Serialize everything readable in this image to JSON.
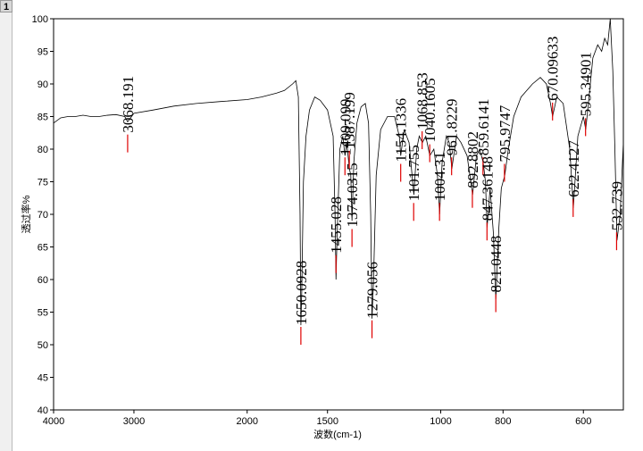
{
  "tab_label": "1",
  "chart_data": {
    "type": "line",
    "xlabel": "波数(cm-1)",
    "ylabel": "透过率%",
    "xscale": "log",
    "xlim": [
      4000,
      520
    ],
    "xticks": [
      4000,
      3000,
      2000,
      1500,
      1000,
      800,
      600
    ],
    "ylim": [
      40,
      100
    ],
    "yticks": [
      40,
      45,
      50,
      55,
      60,
      65,
      70,
      75,
      80,
      85,
      90,
      95,
      100
    ],
    "color": "#000000",
    "peak_color": "#e00000",
    "x": [
      4000,
      3900,
      3800,
      3700,
      3600,
      3500,
      3400,
      3300,
      3200,
      3100,
      3068,
      3000,
      2800,
      2600,
      2400,
      2200,
      2000,
      1900,
      1800,
      1750,
      1700,
      1680,
      1665,
      1655,
      1650,
      1645,
      1635,
      1620,
      1600,
      1570,
      1540,
      1500,
      1470,
      1460,
      1455,
      1450,
      1435,
      1420,
      1409,
      1400,
      1387,
      1380,
      1374,
      1365,
      1350,
      1330,
      1310,
      1295,
      1285,
      1279,
      1272,
      1260,
      1240,
      1210,
      1180,
      1160,
      1154,
      1140,
      1120,
      1101,
      1090,
      1080,
      1068,
      1055,
      1040,
      1025,
      1012,
      1004,
      995,
      980,
      970,
      961,
      945,
      930,
      910,
      892,
      880,
      870,
      859,
      852,
      847,
      838,
      828,
      821,
      812,
      805,
      795,
      785,
      770,
      750,
      720,
      700,
      685,
      675,
      670,
      660,
      645,
      630,
      622,
      612,
      600,
      595,
      588,
      580,
      570,
      562,
      556,
      550,
      545,
      540,
      536,
      532,
      526,
      520
    ],
    "values": [
      84,
      84.8,
      85,
      85,
      85.2,
      85,
      85,
      85.2,
      85.3,
      85,
      84.2,
      85.5,
      86,
      86.6,
      87,
      87.3,
      87.6,
      88,
      88.6,
      89,
      90,
      90.5,
      88,
      70,
      53,
      58,
      75,
      82,
      86,
      88,
      87.5,
      86,
      82,
      70,
      60,
      66,
      80,
      82,
      79,
      81,
      77,
      76,
      69,
      78,
      84,
      86.5,
      87,
      84,
      70,
      54,
      60,
      76,
      83,
      85,
      85,
      82,
      79,
      83,
      81,
      73,
      80,
      82,
      81,
      82,
      79,
      80,
      76,
      70,
      78,
      82,
      81,
      77,
      82,
      81,
      79,
      73,
      79,
      80,
      78,
      75,
      68,
      74,
      67,
      57,
      68,
      74,
      76,
      80,
      85,
      88,
      90,
      91,
      90,
      87,
      85,
      88,
      87,
      80,
      71,
      82,
      85,
      83,
      88,
      94,
      96,
      95,
      97,
      96,
      100,
      92,
      80,
      66,
      70,
      81
    ],
    "peaks": {
      "x": [
        3068.191,
        1650.0928,
        1455.028,
        1409.099,
        1387.199,
        1374.0315,
        1279.056,
        1154.1336,
        1101.755,
        1068.853,
        1040.1605,
        1004.31,
        961.8229,
        892.8802,
        859.6141,
        847.36148,
        821.0448,
        795.9747,
        670.09633,
        622.4127,
        595.34901,
        532.739
      ],
      "y": [
        79.5,
        50,
        61,
        76,
        77,
        65,
        51,
        75,
        69,
        80,
        78,
        69,
        76,
        71,
        76,
        66,
        55,
        75,
        84.4,
        69.6,
        82,
        64.5
      ]
    }
  }
}
